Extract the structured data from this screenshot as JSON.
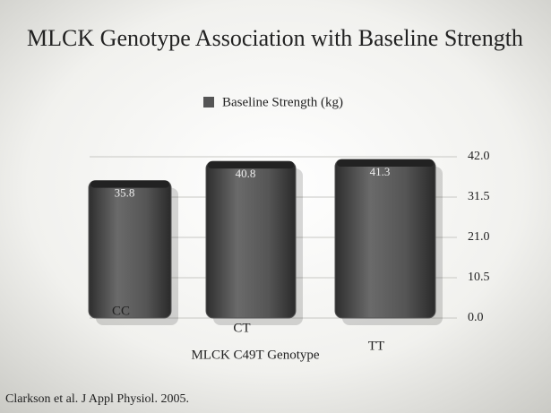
{
  "chart_data": {
    "type": "bar",
    "title": "MLCK Genotype Association with Baseline Strength",
    "categories": [
      "CC",
      "CT",
      "TT"
    ],
    "series": [
      {
        "name": "Baseline Strength (kg)",
        "color": "#555555",
        "values": [
          35.8,
          40.8,
          41.3
        ]
      }
    ],
    "ylim": [
      0,
      42
    ],
    "yticks": [
      {
        "value": 0,
        "label": "0.0"
      },
      10.5,
      {
        "value": 21,
        "label": "21.0"
      },
      31.5,
      {
        "value": 42,
        "label": "42.0"
      }
    ],
    "grid": true,
    "xlabel": "MLCK C49T Genotype",
    "source": "Clarkson et al. J Appl Physiol. 2005."
  }
}
